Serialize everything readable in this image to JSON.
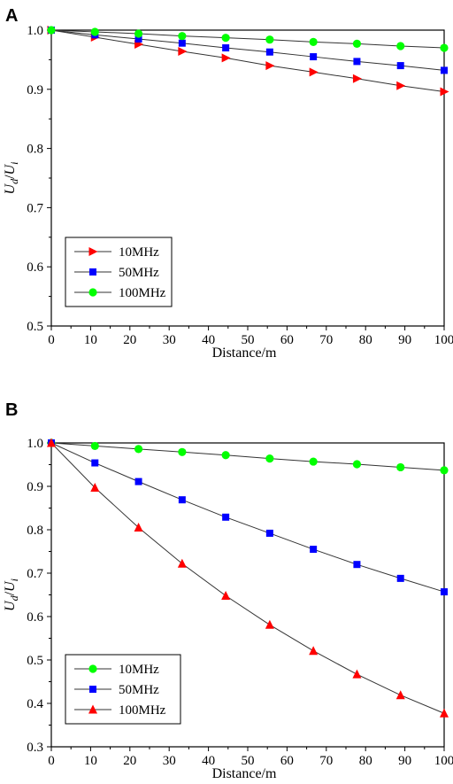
{
  "chart_data": [
    {
      "panel": "A",
      "type": "line",
      "xlabel": "Distance/m",
      "ylabel": {
        "main": "U",
        "sub": "d",
        "sep": "/",
        "main2": "U",
        "sub2": "i"
      },
      "xlim": [
        0,
        100
      ],
      "ylim": [
        0.5,
        1.0
      ],
      "xticks": [
        0,
        10,
        20,
        30,
        40,
        50,
        60,
        70,
        80,
        90,
        100
      ],
      "yticks": [
        0.5,
        0.6,
        0.7,
        0.8,
        0.9,
        1.0
      ],
      "ytick_labels": [
        "0.5",
        "0.6",
        "0.7",
        "0.8",
        "0.9",
        "1.0"
      ],
      "x": [
        0,
        11.1,
        22.2,
        33.3,
        44.4,
        55.6,
        66.7,
        77.8,
        88.9,
        100
      ],
      "legend_position": "lower-left",
      "series": [
        {
          "name": "10MHz",
          "marker": "triangle-right",
          "color": "#ff0000",
          "values": [
            1.0,
            0.988,
            0.976,
            0.964,
            0.953,
            0.94,
            0.929,
            0.918,
            0.906,
            0.896
          ]
        },
        {
          "name": "50MHz",
          "marker": "square",
          "color": "#0000ff",
          "values": [
            1.0,
            0.992,
            0.985,
            0.978,
            0.97,
            0.963,
            0.955,
            0.947,
            0.94,
            0.932
          ]
        },
        {
          "name": "100MHz",
          "marker": "circle",
          "color": "#00ff00",
          "values": [
            1.0,
            0.997,
            0.994,
            0.99,
            0.987,
            0.984,
            0.98,
            0.977,
            0.973,
            0.97
          ]
        }
      ]
    },
    {
      "panel": "B",
      "type": "line",
      "xlabel": "Distance/m",
      "ylabel": {
        "main": "U",
        "sub": "d",
        "sep": "/",
        "main2": "U",
        "sub2": "i"
      },
      "xlim": [
        0,
        100
      ],
      "ylim": [
        0.3,
        1.0
      ],
      "xticks": [
        0,
        10,
        20,
        30,
        40,
        50,
        60,
        70,
        80,
        90,
        100
      ],
      "yticks": [
        0.3,
        0.4,
        0.5,
        0.6,
        0.7,
        0.8,
        0.9,
        1.0
      ],
      "ytick_labels": [
        "0.3",
        "0.4",
        "0.5",
        "0.6",
        "0.7",
        "0.8",
        "0.9",
        "1.0"
      ],
      "x": [
        0,
        11.1,
        22.2,
        33.3,
        44.4,
        55.6,
        66.7,
        77.8,
        88.9,
        100
      ],
      "legend_position": "lower-left",
      "series": [
        {
          "name": "10MHz",
          "marker": "circle",
          "color": "#00ff00",
          "values": [
            1.0,
            0.993,
            0.986,
            0.979,
            0.972,
            0.964,
            0.957,
            0.951,
            0.944,
            0.937
          ]
        },
        {
          "name": "50MHz",
          "marker": "square",
          "color": "#0000ff",
          "values": [
            1.0,
            0.954,
            0.911,
            0.869,
            0.829,
            0.792,
            0.755,
            0.72,
            0.688,
            0.657
          ]
        },
        {
          "name": "100MHz",
          "marker": "triangle-up",
          "color": "#ff0000",
          "values": [
            1.0,
            0.897,
            0.805,
            0.722,
            0.648,
            0.581,
            0.521,
            0.467,
            0.419,
            0.377
          ]
        }
      ]
    }
  ]
}
